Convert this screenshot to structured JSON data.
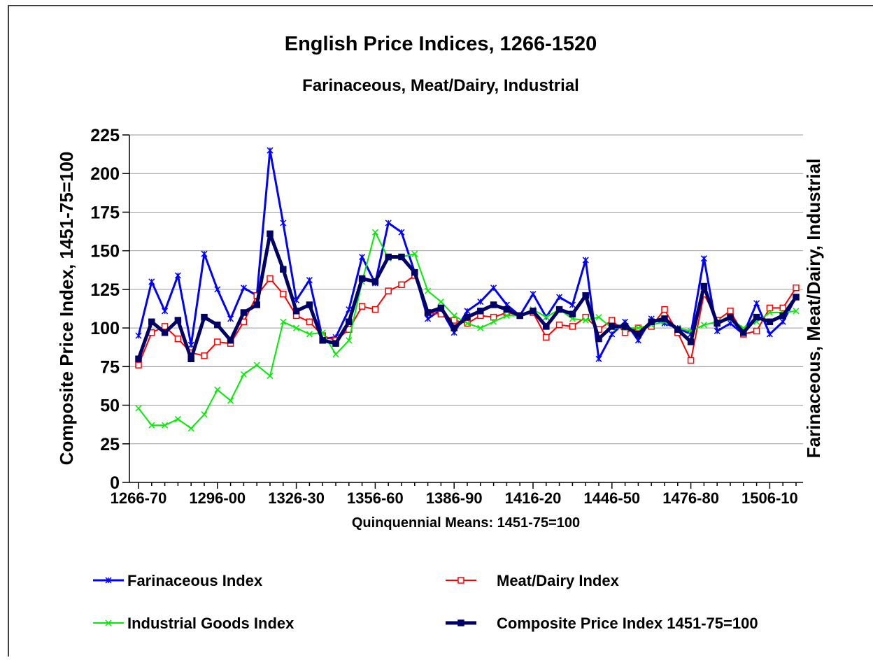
{
  "chart_data": {
    "type": "line",
    "title": "English Price Indices, 1266-1520",
    "subtitle": "Farinaceous, Meat/Dairy, Industrial",
    "y_label": "Composite Price Index, 1451-75=100",
    "y2_label": "Farinaceous, Meat/Dairy, Industrial",
    "x_label": "Quinquennial Means: 1451-75=100",
    "categories": [
      "1266-70",
      null,
      null,
      null,
      null,
      null,
      "1296-00",
      null,
      null,
      null,
      null,
      null,
      "1326-30",
      null,
      null,
      null,
      null,
      null,
      "1356-60",
      null,
      null,
      null,
      null,
      null,
      "1386-90",
      null,
      null,
      null,
      null,
      null,
      "1416-20",
      null,
      null,
      null,
      null,
      null,
      "1446-50",
      null,
      null,
      null,
      null,
      null,
      "1476-80",
      null,
      null,
      null,
      null,
      null,
      "1506-10",
      null,
      null
    ],
    "ylim": [
      0,
      225
    ],
    "yticks": [
      0,
      25,
      50,
      75,
      100,
      125,
      150,
      175,
      200,
      225
    ],
    "grid": true,
    "series": [
      {
        "name": "Farinaceous Index",
        "color": "#0000ff",
        "marker": "star",
        "line_width": 3,
        "values": [
          95,
          130,
          111,
          134,
          89,
          148,
          125,
          106,
          126,
          121,
          215,
          168,
          118,
          131,
          93,
          94,
          112,
          146,
          129,
          168,
          162,
          136,
          106,
          112,
          97,
          111,
          117,
          126,
          115,
          108,
          122,
          107,
          120,
          115,
          144,
          80,
          96,
          104,
          92,
          106,
          103,
          100,
          96,
          145,
          98,
          103,
          96,
          116,
          96,
          104,
          120
        ]
      },
      {
        "name": "Meat/Dairy Index",
        "color": "#ff0000",
        "marker": "square",
        "line_width": 2,
        "values": [
          76,
          97,
          101,
          93,
          84,
          82,
          91,
          90,
          104,
          121,
          132,
          122,
          108,
          104,
          95,
          92,
          99,
          114,
          112,
          124,
          128,
          134,
          110,
          109,
          105,
          103,
          108,
          107,
          110,
          108,
          110,
          94,
          102,
          101,
          107,
          99,
          105,
          97,
          100,
          101,
          112,
          97,
          79,
          122,
          105,
          111,
          96,
          98,
          113,
          113,
          126
        ]
      },
      {
        "name": "Industrial Goods Index",
        "color": "#00ee00",
        "marker": "x",
        "line_width": 2,
        "values": [
          48,
          37,
          37,
          41,
          35,
          44,
          60,
          53,
          70,
          76,
          69,
          104,
          100,
          96,
          97,
          83,
          92,
          130,
          162,
          145,
          146,
          148,
          124,
          117,
          108,
          103,
          100,
          104,
          108,
          108,
          112,
          107,
          112,
          106,
          105,
          107,
          100,
          100,
          100,
          102,
          104,
          100,
          98,
          102,
          104,
          106,
          100,
          104,
          110,
          110,
          111
        ]
      },
      {
        "name": "Composite Price Index 1451-75=100",
        "color": "#000066",
        "marker": "square",
        "line_width": 5,
        "values": [
          80,
          104,
          97,
          105,
          80,
          107,
          102,
          92,
          110,
          115,
          161,
          138,
          111,
          115,
          92,
          90,
          104,
          132,
          130,
          146,
          146,
          136,
          110,
          113,
          100,
          107,
          111,
          115,
          112,
          108,
          111,
          101,
          112,
          109,
          121,
          93,
          101,
          101,
          96,
          104,
          106,
          99,
          91,
          127,
          103,
          107,
          97,
          107,
          104,
          108,
          120
        ]
      }
    ]
  }
}
